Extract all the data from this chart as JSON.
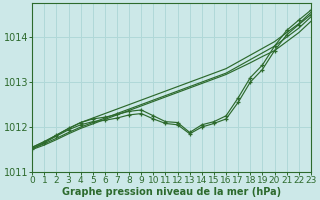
{
  "xlabel": "Graphe pression niveau de la mer (hPa)",
  "ylim": [
    1011.0,
    1014.75
  ],
  "xlim": [
    0,
    23
  ],
  "yticks": [
    1011,
    1012,
    1013,
    1014
  ],
  "xticks": [
    0,
    1,
    2,
    3,
    4,
    5,
    6,
    7,
    8,
    9,
    10,
    11,
    12,
    13,
    14,
    15,
    16,
    17,
    18,
    19,
    20,
    21,
    22,
    23
  ],
  "bg_color": "#cce8e8",
  "grid_color": "#b0d8d8",
  "line_color": "#2d6a2d",
  "series_plain": [
    [
      1011.55,
      1011.68,
      1011.82,
      1011.97,
      1012.1,
      1012.2,
      1012.3,
      1012.4,
      1012.5,
      1012.6,
      1012.7,
      1012.8,
      1012.9,
      1013.0,
      1013.1,
      1013.2,
      1013.3,
      1013.45,
      1013.6,
      1013.75,
      1013.9,
      1014.1,
      1014.3,
      1014.55
    ],
    [
      1011.52,
      1011.63,
      1011.75,
      1011.88,
      1012.0,
      1012.1,
      1012.2,
      1012.3,
      1012.4,
      1012.5,
      1012.6,
      1012.7,
      1012.8,
      1012.9,
      1013.0,
      1013.1,
      1013.2,
      1013.35,
      1013.5,
      1013.65,
      1013.8,
      1014.0,
      1014.2,
      1014.45
    ],
    [
      1011.5,
      1011.6,
      1011.72,
      1011.85,
      1011.97,
      1012.07,
      1012.17,
      1012.27,
      1012.37,
      1012.47,
      1012.57,
      1012.67,
      1012.77,
      1012.87,
      1012.97,
      1013.07,
      1013.17,
      1013.3,
      1013.43,
      1013.57,
      1013.7,
      1013.9,
      1014.1,
      1014.35
    ]
  ],
  "series_marked": [
    [
      1011.55,
      1011.67,
      1011.82,
      1011.97,
      1012.1,
      1012.18,
      1012.22,
      1012.28,
      1012.35,
      1012.38,
      1012.25,
      1012.12,
      1012.1,
      1011.88,
      1012.05,
      1012.12,
      1012.25,
      1012.65,
      1013.1,
      1013.38,
      1013.8,
      1014.15,
      1014.38,
      1014.6
    ],
    [
      1011.52,
      1011.65,
      1011.8,
      1011.94,
      1012.05,
      1012.12,
      1012.15,
      1012.2,
      1012.27,
      1012.3,
      1012.18,
      1012.08,
      1012.05,
      1011.85,
      1012.0,
      1012.08,
      1012.18,
      1012.55,
      1013.0,
      1013.28,
      1013.7,
      1014.05,
      1014.28,
      1014.5
    ]
  ],
  "font_size_label": 7,
  "font_size_tick": 6.5
}
